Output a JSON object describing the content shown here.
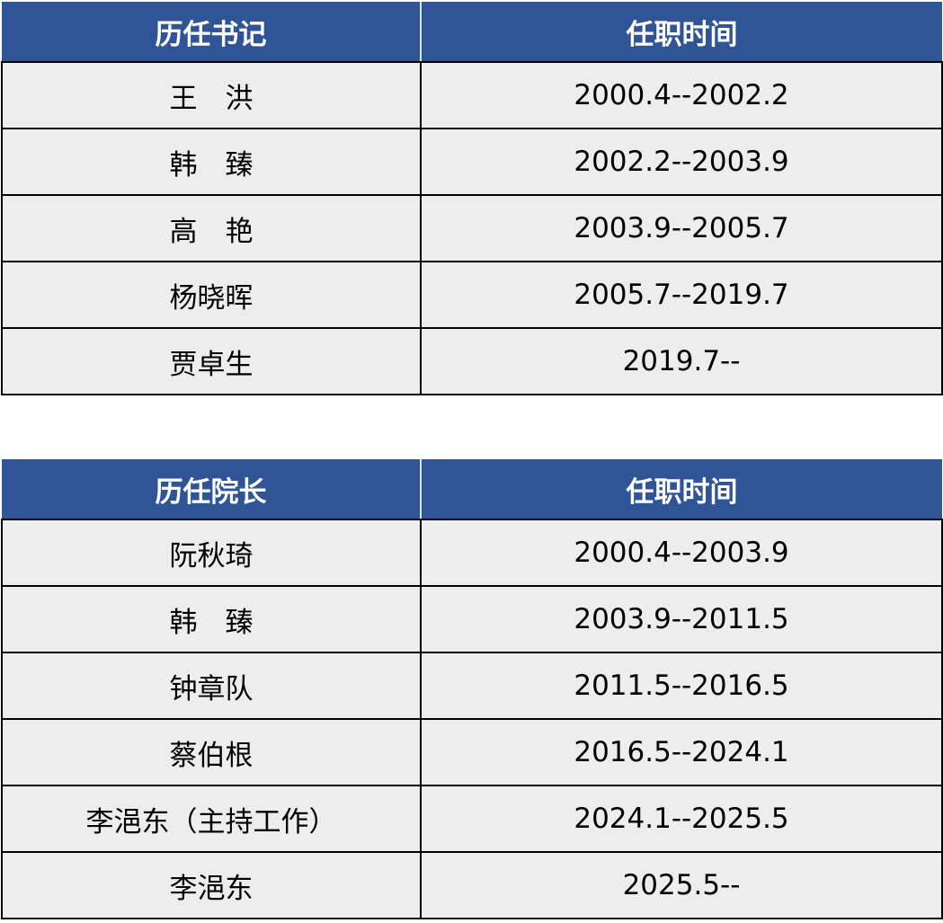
{
  "colors": {
    "header_bg": "#2F5597",
    "row_bg": "#EDEDED"
  },
  "secretaries": {
    "headers": [
      "历任书记",
      "任职时间"
    ],
    "rows": [
      [
        "王　洪",
        "2000.4--2002.2"
      ],
      [
        "韩　臻",
        "2002.2--2003.9"
      ],
      [
        "高　艳",
        "2003.9--2005.7"
      ],
      [
        "杨晓晖",
        "2005.7--2019.7"
      ],
      [
        "贾卓生",
        "2019.7--"
      ]
    ]
  },
  "presidents": {
    "headers": [
      "历任院长",
      "任职时间"
    ],
    "rows": [
      [
        "阮秋琦",
        "2000.4--2003.9"
      ],
      [
        "韩　臻",
        "2003.9--2011.5"
      ],
      [
        "钟章队",
        "2011.5--2016.5"
      ],
      [
        "蔡伯根",
        "2016.5--2024.1"
      ],
      [
        "李浥东（主持工作）",
        "2024.1--2025.5"
      ],
      [
        "李浥东",
        "2025.5--"
      ]
    ]
  }
}
